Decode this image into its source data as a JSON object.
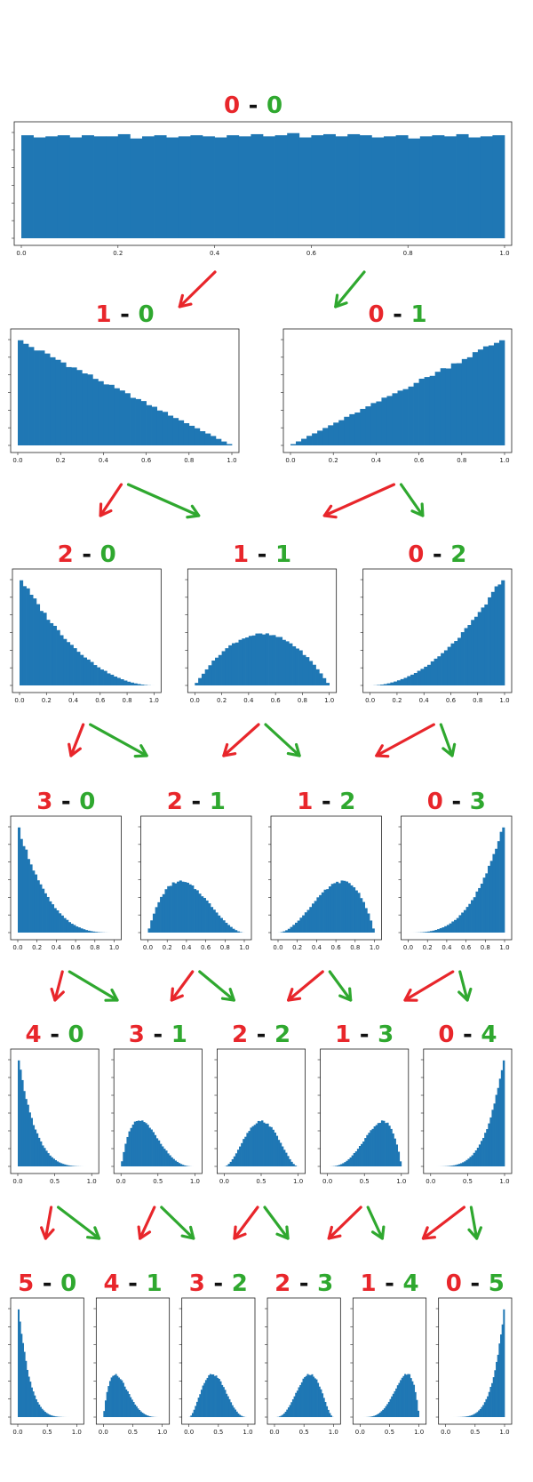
{
  "colors": {
    "bar": "#1f77b4",
    "red": "#e8262b",
    "green": "#2fa82f",
    "black": "#111111",
    "axis": "#222222"
  },
  "chart_data": [
    {
      "type": "bar",
      "label_a": "0",
      "dash": "-",
      "label_b": "0",
      "alpha": 1,
      "beta": 1,
      "xlim": [
        0,
        1
      ],
      "xticks": [
        "0.0",
        "0.2",
        "0.4",
        "0.6",
        "0.8",
        "1.0"
      ],
      "grid": false,
      "bins": 40,
      "values": [
        0.96,
        0.94,
        0.95,
        0.96,
        0.94,
        0.96,
        0.95,
        0.95,
        0.97,
        0.93,
        0.95,
        0.96,
        0.94,
        0.95,
        0.96,
        0.95,
        0.94,
        0.96,
        0.95,
        0.97,
        0.95,
        0.96,
        0.98,
        0.94,
        0.96,
        0.97,
        0.95,
        0.97,
        0.96,
        0.94,
        0.95,
        0.96,
        0.93,
        0.95,
        0.96,
        0.95,
        0.97,
        0.94,
        0.95,
        0.96
      ]
    },
    {
      "type": "bar",
      "label_a": "1",
      "dash": "-",
      "label_b": "0",
      "alpha": 1,
      "beta": 2,
      "xlim": [
        0,
        1
      ],
      "xticks": [
        "0.0",
        "0.2",
        "0.4",
        "0.6",
        "0.8",
        "1.0"
      ],
      "grid": false,
      "bins": 40
    },
    {
      "type": "bar",
      "label_a": "0",
      "dash": "-",
      "label_b": "1",
      "alpha": 2,
      "beta": 1,
      "xlim": [
        0,
        1
      ],
      "xticks": [
        "0.0",
        "0.2",
        "0.4",
        "0.6",
        "0.8",
        "1.0"
      ],
      "grid": false,
      "bins": 40
    },
    {
      "type": "bar",
      "label_a": "2",
      "dash": "-",
      "label_b": "0",
      "alpha": 1,
      "beta": 3,
      "xlim": [
        0,
        1
      ],
      "xticks": [
        "0.0",
        "0.2",
        "0.4",
        "0.6",
        "0.8",
        "1.0"
      ],
      "grid": false,
      "bins": 40
    },
    {
      "type": "bar",
      "label_a": "1",
      "dash": "-",
      "label_b": "1",
      "alpha": 2,
      "beta": 2,
      "xlim": [
        0,
        1
      ],
      "xticks": [
        "0.0",
        "0.2",
        "0.4",
        "0.6",
        "0.8",
        "1.0"
      ],
      "grid": false,
      "bins": 40,
      "ymax_factor": 2.1
    },
    {
      "type": "bar",
      "label_a": "0",
      "dash": "-",
      "label_b": "2",
      "alpha": 3,
      "beta": 1,
      "xlim": [
        0,
        1
      ],
      "xticks": [
        "0.0",
        "0.2",
        "0.4",
        "0.6",
        "0.8",
        "1.0"
      ],
      "grid": false,
      "bins": 40
    },
    {
      "type": "bar",
      "label_a": "3",
      "dash": "-",
      "label_b": "0",
      "alpha": 1,
      "beta": 4,
      "xlim": [
        0,
        1
      ],
      "xticks": [
        "0.0",
        "0.2",
        "0.4",
        "0.6",
        "0.8",
        "1.0"
      ],
      "grid": false,
      "bins": 40
    },
    {
      "type": "bar",
      "label_a": "2",
      "dash": "-",
      "label_b": "1",
      "alpha": 2,
      "beta": 3,
      "xlim": [
        0,
        1
      ],
      "xticks": [
        "0.0",
        "0.2",
        "0.4",
        "0.6",
        "0.8",
        "1.0"
      ],
      "grid": false,
      "bins": 40,
      "ymax_factor": 2.1
    },
    {
      "type": "bar",
      "label_a": "1",
      "dash": "-",
      "label_b": "2",
      "alpha": 3,
      "beta": 2,
      "xlim": [
        0,
        1
      ],
      "xticks": [
        "0.0",
        "0.2",
        "0.4",
        "0.6",
        "0.8",
        "1.0"
      ],
      "grid": false,
      "bins": 40,
      "ymax_factor": 2.1
    },
    {
      "type": "bar",
      "label_a": "0",
      "dash": "-",
      "label_b": "3",
      "alpha": 4,
      "beta": 1,
      "xlim": [
        0,
        1
      ],
      "xticks": [
        "0.0",
        "0.2",
        "0.4",
        "0.6",
        "0.8",
        "1.0"
      ],
      "grid": false,
      "bins": 40
    },
    {
      "type": "bar",
      "label_a": "4",
      "dash": "-",
      "label_b": "0",
      "alpha": 1,
      "beta": 5,
      "xlim": [
        0,
        1
      ],
      "xticks": [
        "0.0",
        "0.5",
        "1.0"
      ],
      "grid": false,
      "bins": 40
    },
    {
      "type": "bar",
      "label_a": "3",
      "dash": "-",
      "label_b": "1",
      "alpha": 2,
      "beta": 4,
      "xlim": [
        0,
        1
      ],
      "xticks": [
        "0.0",
        "0.5",
        "1.0"
      ],
      "grid": false,
      "bins": 40,
      "ymax_factor": 2.4
    },
    {
      "type": "bar",
      "label_a": "2",
      "dash": "-",
      "label_b": "2",
      "alpha": 3,
      "beta": 3,
      "xlim": [
        0,
        1
      ],
      "xticks": [
        "0.0",
        "0.5",
        "1.0"
      ],
      "grid": false,
      "bins": 40,
      "ymax_factor": 2.4
    },
    {
      "type": "bar",
      "label_a": "1",
      "dash": "-",
      "label_b": "3",
      "alpha": 4,
      "beta": 2,
      "xlim": [
        0,
        1
      ],
      "xticks": [
        "0.0",
        "0.5",
        "1.0"
      ],
      "grid": false,
      "bins": 40,
      "ymax_factor": 2.4
    },
    {
      "type": "bar",
      "label_a": "0",
      "dash": "-",
      "label_b": "4",
      "alpha": 5,
      "beta": 1,
      "xlim": [
        0,
        1
      ],
      "xticks": [
        "0.0",
        "0.5",
        "1.0"
      ],
      "grid": false,
      "bins": 40
    },
    {
      "type": "bar",
      "label_a": "5",
      "dash": "-",
      "label_b": "0",
      "alpha": 1,
      "beta": 6,
      "xlim": [
        0,
        1
      ],
      "xticks": [
        "0.0",
        "0.5",
        "1.0"
      ],
      "grid": false,
      "bins": 40
    },
    {
      "type": "bar",
      "label_a": "4",
      "dash": "-",
      "label_b": "1",
      "alpha": 2,
      "beta": 5,
      "xlim": [
        0,
        1
      ],
      "xticks": [
        "0.0",
        "0.5",
        "1.0"
      ],
      "grid": false,
      "bins": 40,
      "ymax_factor": 2.6
    },
    {
      "type": "bar",
      "label_a": "3",
      "dash": "-",
      "label_b": "2",
      "alpha": 3,
      "beta": 4,
      "xlim": [
        0,
        1
      ],
      "xticks": [
        "0.0",
        "0.5",
        "1.0"
      ],
      "grid": false,
      "bins": 40,
      "ymax_factor": 2.6
    },
    {
      "type": "bar",
      "label_a": "2",
      "dash": "-",
      "label_b": "3",
      "alpha": 4,
      "beta": 3,
      "xlim": [
        0,
        1
      ],
      "xticks": [
        "0.0",
        "0.5",
        "1.0"
      ],
      "grid": false,
      "bins": 40,
      "ymax_factor": 2.6
    },
    {
      "type": "bar",
      "label_a": "1",
      "dash": "-",
      "label_b": "4",
      "alpha": 5,
      "beta": 2,
      "xlim": [
        0,
        1
      ],
      "xticks": [
        "0.0",
        "0.5",
        "1.0"
      ],
      "grid": false,
      "bins": 40,
      "ymax_factor": 2.6
    },
    {
      "type": "bar",
      "label_a": "0",
      "dash": "-",
      "label_b": "5",
      "alpha": 6,
      "beta": 1,
      "xlim": [
        0,
        1
      ],
      "xticks": [
        "0.0",
        "0.5",
        "1.0"
      ],
      "grid": false,
      "bins": 40
    }
  ]
}
